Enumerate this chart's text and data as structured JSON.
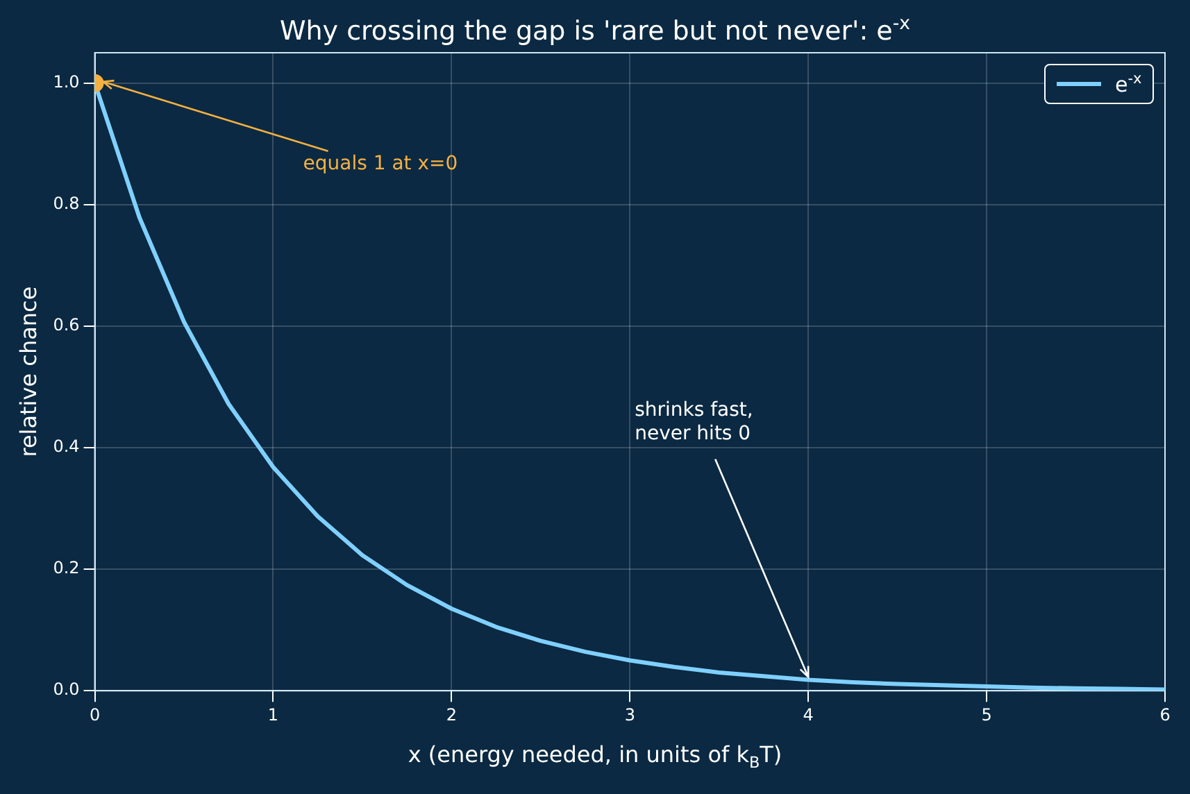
{
  "chart_data": {
    "type": "line",
    "title": "Why crossing the gap is 'rare but not never': e$^{-x}$",
    "xlabel": "x  (energy needed, in units of k$_{B}$T)",
    "ylabel": "relative chance",
    "x": [
      0,
      0.25,
      0.5,
      0.75,
      1,
      1.25,
      1.5,
      1.75,
      2,
      2.25,
      2.5,
      2.75,
      3,
      3.25,
      3.5,
      3.75,
      4,
      4.25,
      4.5,
      4.75,
      5,
      5.25,
      5.5,
      5.75,
      6
    ],
    "series": [
      {
        "name": "e$^{-x}$",
        "color": "#7fd0ff",
        "values": [
          1,
          0.779,
          0.607,
          0.472,
          0.368,
          0.287,
          0.223,
          0.174,
          0.135,
          0.105,
          0.082,
          0.064,
          0.05,
          0.039,
          0.03,
          0.024,
          0.018,
          0.014,
          0.011,
          0.009,
          0.007,
          0.005,
          0.004,
          0.003,
          0.002
        ]
      },
      {
        "type": "scatter",
        "color": "#f5b041",
        "x": [
          0
        ],
        "values": [
          1
        ]
      }
    ],
    "annotations": [
      {
        "text": "equals 1 at x=0",
        "x": 0,
        "y": 1
      },
      {
        "text": "shrinks fast,\nnever hits 0",
        "x": 4,
        "y": 0.018
      }
    ],
    "xlim": [
      0,
      6
    ],
    "xticks": [
      0,
      1,
      2,
      3,
      4,
      5,
      6
    ],
    "ylim": [
      0,
      1.05
    ],
    "yticks": [
      {
        "value": 0,
        "label": "0.0"
      },
      {
        "value": 0.2,
        "label": "0.2"
      },
      {
        "value": 0.4,
        "label": "0.4"
      },
      {
        "value": 0.6,
        "label": "0.6"
      },
      {
        "value": 0.8,
        "label": "0.8"
      },
      {
        "value": 1,
        "label": "1.0"
      }
    ],
    "grid": true,
    "legend": "top right"
  }
}
